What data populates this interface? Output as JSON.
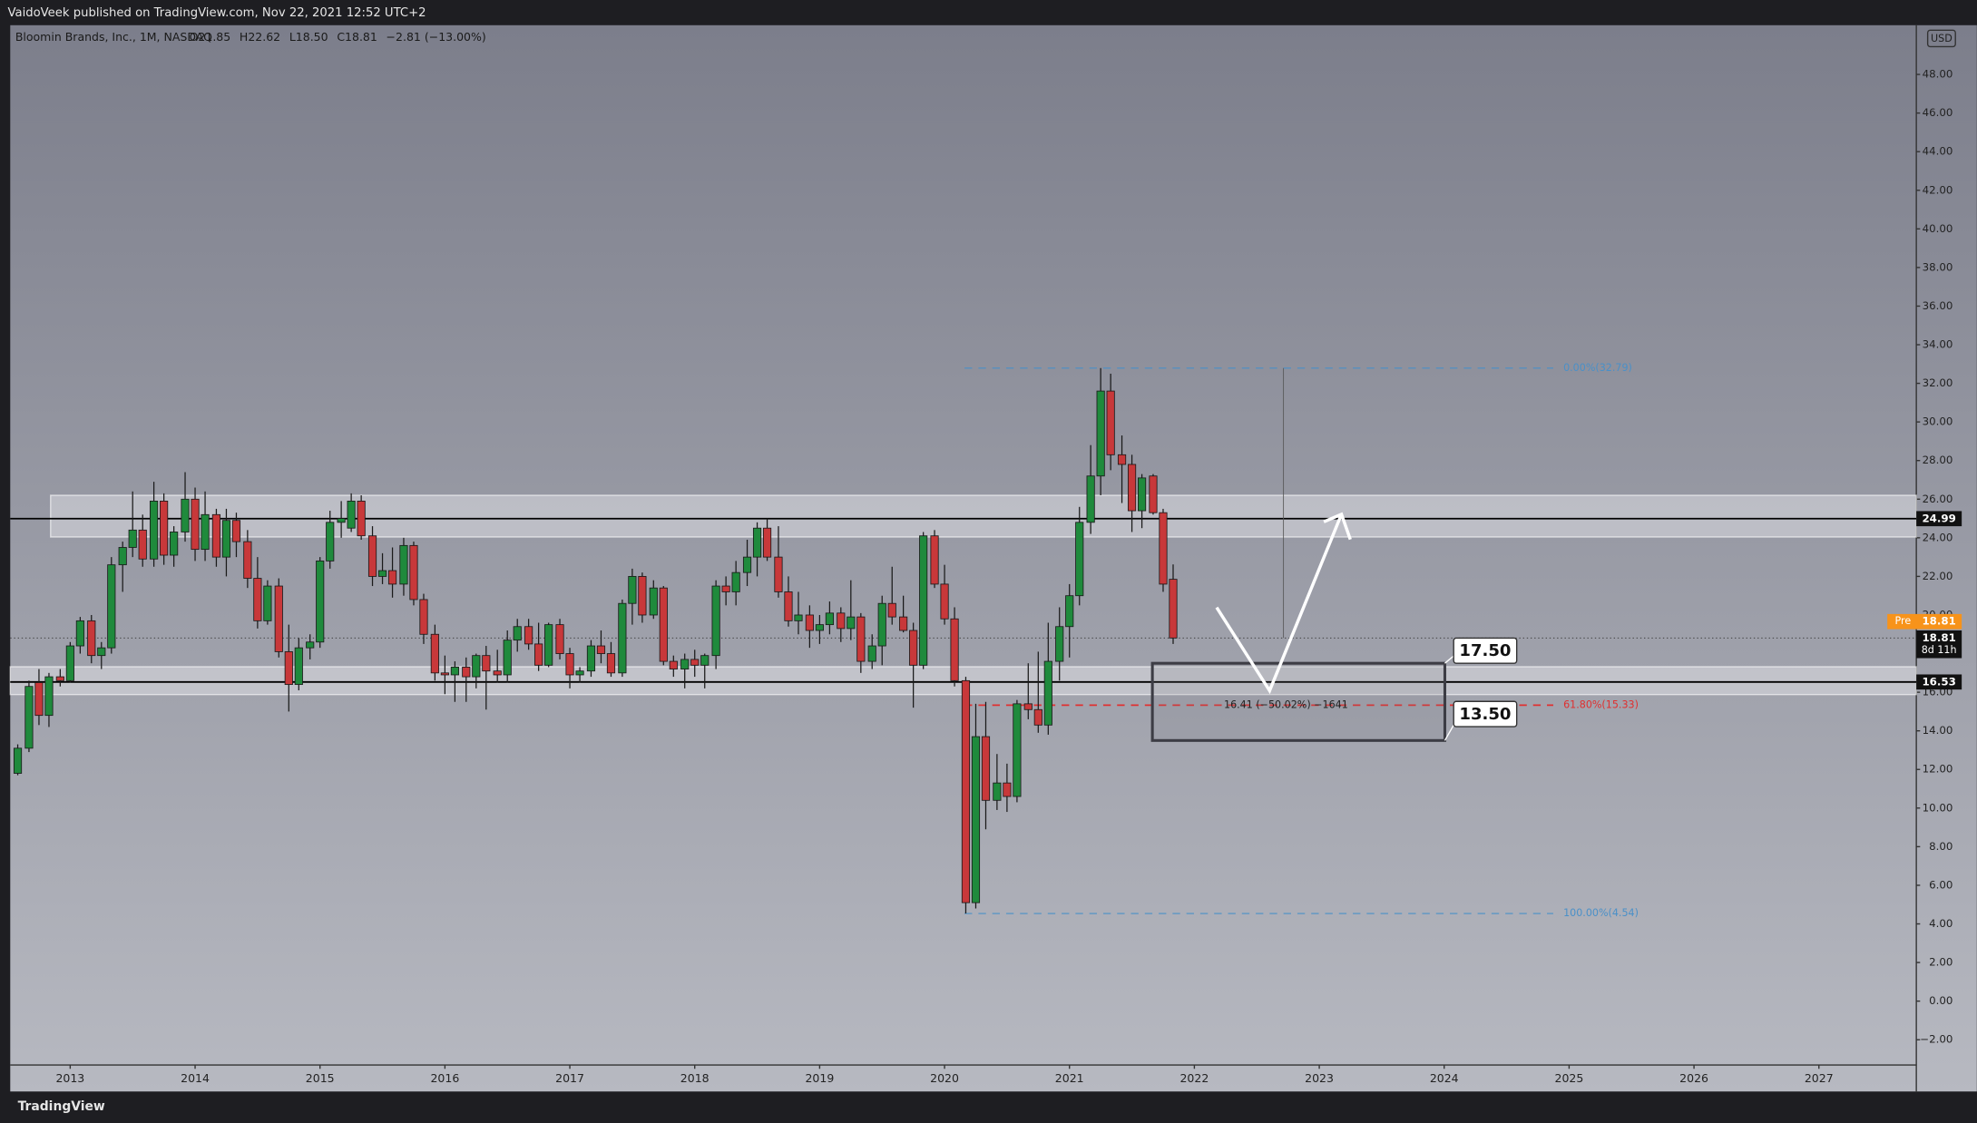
{
  "header": {
    "publisher": "VaidoVeek published on TradingView.com, Nov 22, 2021 12:52 UTC+2",
    "brand": "TradingView"
  },
  "chart_data": {
    "type": "candlestick",
    "title": "Bloomin Brands, Inc., 1M, NASDAQ",
    "ohlc_text": [
      "O21.85",
      "H22.62",
      "L18.50",
      "C18.81",
      "−2.81 (−13.00%)"
    ],
    "currency": "USD",
    "x": [
      2012.58,
      2012.67,
      2012.75,
      2012.83,
      2012.92,
      2013,
      2013.08,
      2013.17,
      2013.25,
      2013.33,
      2013.42,
      2013.5,
      2013.58,
      2013.67,
      2013.75,
      2013.83,
      2013.92,
      2014,
      2014.08,
      2014.17,
      2014.25,
      2014.33,
      2014.42,
      2014.5,
      2014.58,
      2014.67,
      2014.75,
      2014.83,
      2014.92,
      2015,
      2015.08,
      2015.17,
      2015.25,
      2015.33,
      2015.42,
      2015.5,
      2015.58,
      2015.67,
      2015.75,
      2015.83,
      2015.92,
      2016,
      2016.08,
      2016.17,
      2016.25,
      2016.33,
      2016.42,
      2016.5,
      2016.58,
      2016.67,
      2016.75,
      2016.83,
      2016.92,
      2017,
      2017.08,
      2017.17,
      2017.25,
      2017.33,
      2017.42,
      2017.5,
      2017.58,
      2017.67,
      2017.75,
      2017.83,
      2017.92,
      2018,
      2018.08,
      2018.17,
      2018.25,
      2018.33,
      2018.42,
      2018.5,
      2018.58,
      2018.67,
      2018.75,
      2018.83,
      2018.92,
      2019,
      2019.08,
      2019.17,
      2019.25,
      2019.33,
      2019.42,
      2019.5,
      2019.58,
      2019.67,
      2019.75,
      2019.83,
      2019.92,
      2020,
      2020.08,
      2020.17,
      2020.25,
      2020.33,
      2020.42,
      2020.5,
      2020.58,
      2020.67,
      2020.75,
      2020.83,
      2020.92,
      2021,
      2021.08,
      2021.17,
      2021.25,
      2021.33,
      2021.42,
      2021.5,
      2021.58,
      2021.67,
      2021.75,
      2021.83
    ],
    "open": [
      11.8,
      13.1,
      16.5,
      14.8,
      16.8,
      16.6,
      18.4,
      19.7,
      17.9,
      18.3,
      22.6,
      23.5,
      24.4,
      22.9,
      25.9,
      23.1,
      24.3,
      26.0,
      23.4,
      25.2,
      23.0,
      24.9,
      23.8,
      21.9,
      19.7,
      21.5,
      18.1,
      16.4,
      18.3,
      18.6,
      22.8,
      24.8,
      24.5,
      25.9,
      24.1,
      22.0,
      22.3,
      21.6,
      23.6,
      20.8,
      19.0,
      17.0,
      16.9,
      17.3,
      16.8,
      17.9,
      17.1,
      16.9,
      18.7,
      19.4,
      18.5,
      17.4,
      19.5,
      18.0,
      16.9,
      17.1,
      18.4,
      18.0,
      17.0,
      20.6,
      22.0,
      20.0,
      21.4,
      17.6,
      17.2,
      17.7,
      17.4,
      17.9,
      21.5,
      21.2,
      22.2,
      23.0,
      24.5,
      23.0,
      21.2,
      19.7,
      20.0,
      19.2,
      19.5,
      20.1,
      19.3,
      19.9,
      17.6,
      18.4,
      20.6,
      19.9,
      19.2,
      17.4,
      24.1,
      21.6,
      19.8,
      16.6,
      5.1,
      13.7,
      10.4,
      11.3,
      10.6,
      15.4,
      15.1,
      14.3,
      17.6,
      19.4,
      21.0,
      24.8,
      27.2,
      31.6,
      28.3,
      27.8,
      25.4,
      27.2,
      25.3,
      21.85
    ],
    "high": [
      13.3,
      16.6,
      17.2,
      17.0,
      17.2,
      18.6,
      19.9,
      20.0,
      18.6,
      23.0,
      23.8,
      26.4,
      25.2,
      26.9,
      26.3,
      24.6,
      27.4,
      26.6,
      26.4,
      25.5,
      25.5,
      25.3,
      24.4,
      23.0,
      21.8,
      21.9,
      19.5,
      18.8,
      19.0,
      23.0,
      25.4,
      25.9,
      26.3,
      26.2,
      24.6,
      23.2,
      23.5,
      24.0,
      23.8,
      21.1,
      19.5,
      17.9,
      17.6,
      17.8,
      18.0,
      18.4,
      18.2,
      19.2,
      19.8,
      19.8,
      19.6,
      19.6,
      19.8,
      18.3,
      17.3,
      18.7,
      19.2,
      18.6,
      20.8,
      22.4,
      22.2,
      21.8,
      21.5,
      17.9,
      18.0,
      18.2,
      18.0,
      21.8,
      22.0,
      22.8,
      23.9,
      24.8,
      25.0,
      24.6,
      22.0,
      21.2,
      20.5,
      20.0,
      20.7,
      20.4,
      21.8,
      20.1,
      19.0,
      21.0,
      22.5,
      21.0,
      19.6,
      24.3,
      24.4,
      22.6,
      20.4,
      16.8,
      15.4,
      15.5,
      12.8,
      12.3,
      15.6,
      17.5,
      18.1,
      19.6,
      20.4,
      21.6,
      25.6,
      28.8,
      32.79,
      32.5,
      29.3,
      28.3,
      27.3,
      27.3,
      25.5,
      22.62
    ],
    "low": [
      11.7,
      12.9,
      14.3,
      14.2,
      16.3,
      16.5,
      18.0,
      17.5,
      17.2,
      18.0,
      21.2,
      23.0,
      22.5,
      22.5,
      22.6,
      22.5,
      23.8,
      22.8,
      22.8,
      22.5,
      22.0,
      23.0,
      21.4,
      19.3,
      19.5,
      17.8,
      15.0,
      16.1,
      17.7,
      18.3,
      22.4,
      24.0,
      24.3,
      23.9,
      21.5,
      21.6,
      20.9,
      21.0,
      20.5,
      18.5,
      16.6,
      15.9,
      15.5,
      15.5,
      16.2,
      15.1,
      16.5,
      16.5,
      18.1,
      18.2,
      17.1,
      17.3,
      17.7,
      16.2,
      16.5,
      16.8,
      17.5,
      16.8,
      16.8,
      19.5,
      19.6,
      19.8,
      17.4,
      16.8,
      16.2,
      16.8,
      16.2,
      17.2,
      20.5,
      20.5,
      21.5,
      22.0,
      22.8,
      20.9,
      19.4,
      19.0,
      18.3,
      18.5,
      19.0,
      18.6,
      18.7,
      17.0,
      17.2,
      17.4,
      19.5,
      19.1,
      15.2,
      17.2,
      21.4,
      19.5,
      16.3,
      4.54,
      4.8,
      8.9,
      9.9,
      9.8,
      10.3,
      14.6,
      13.9,
      13.8,
      16.6,
      17.8,
      20.5,
      24.2,
      26.2,
      27.5,
      25.8,
      24.3,
      24.5,
      25.2,
      21.2,
      18.5
    ],
    "close": [
      13.1,
      16.3,
      14.8,
      16.8,
      16.6,
      18.4,
      19.7,
      17.9,
      18.3,
      22.6,
      23.5,
      24.4,
      22.9,
      25.9,
      23.1,
      24.3,
      26.0,
      23.4,
      25.2,
      23.0,
      24.9,
      23.8,
      21.9,
      19.7,
      21.5,
      18.1,
      16.4,
      18.3,
      18.6,
      22.8,
      24.8,
      25.0,
      25.9,
      24.1,
      22.0,
      22.3,
      21.6,
      23.6,
      20.8,
      19.0,
      17.0,
      16.9,
      17.3,
      16.8,
      17.9,
      17.1,
      16.9,
      18.7,
      19.4,
      18.5,
      17.4,
      19.5,
      18.0,
      16.9,
      17.1,
      18.4,
      18.0,
      17.0,
      20.6,
      22.0,
      20.0,
      21.4,
      17.6,
      17.2,
      17.7,
      17.4,
      17.9,
      21.5,
      21.2,
      22.2,
      23.0,
      24.5,
      23.0,
      21.2,
      19.7,
      20.0,
      19.2,
      19.5,
      20.1,
      19.3,
      19.9,
      17.6,
      18.4,
      20.6,
      19.9,
      19.2,
      17.4,
      24.1,
      21.6,
      19.8,
      16.6,
      5.1,
      13.7,
      10.4,
      11.3,
      10.6,
      15.4,
      15.1,
      14.3,
      17.6,
      19.4,
      21.0,
      24.8,
      27.2,
      31.6,
      28.3,
      27.8,
      25.4,
      27.1,
      25.3,
      21.6,
      18.81
    ],
    "up_color": "#1f8a3c",
    "down_color": "#c8383a",
    "xlim": [
      2012.52,
      2027.78
    ],
    "xticks": [
      2013,
      2014,
      2015,
      2016,
      2017,
      2018,
      2019,
      2020,
      2021,
      2022,
      2023,
      2024,
      2025,
      2026,
      2027
    ],
    "ylim": [
      -3.31,
      50.55
    ],
    "yticks": [
      {
        "value": -2,
        "label": "−2.00"
      },
      {
        "value": 0,
        "label": "0.00"
      },
      {
        "value": 2,
        "label": "2.00"
      },
      {
        "value": 4,
        "label": "4.00"
      },
      {
        "value": 6,
        "label": "6.00"
      },
      {
        "value": 8,
        "label": "8.00"
      },
      {
        "value": 10,
        "label": "10.00"
      },
      {
        "value": 12,
        "label": "12.00"
      },
      {
        "value": 14,
        "label": "14.00"
      },
      {
        "value": 16,
        "label": "16.00"
      },
      {
        "value": 18,
        "label": "18.00"
      },
      {
        "value": 20,
        "label": "20.00"
      },
      {
        "value": 22,
        "label": "22.00"
      },
      {
        "value": 24,
        "label": "24.00"
      },
      {
        "value": 26,
        "label": "26.00"
      },
      {
        "value": 28,
        "label": "28.00"
      },
      {
        "value": 30,
        "label": "30.00"
      },
      {
        "value": 32,
        "label": "32.00"
      },
      {
        "value": 34,
        "label": "34.00"
      },
      {
        "value": 36,
        "label": "36.00"
      },
      {
        "value": 38,
        "label": "38.00"
      },
      {
        "value": 40,
        "label": "40.00"
      },
      {
        "value": 42,
        "label": "42.00"
      },
      {
        "value": 44,
        "label": "44.00"
      },
      {
        "value": 46,
        "label": "46.00"
      },
      {
        "value": 48,
        "label": "48.00"
      }
    ],
    "zones": [
      [
        24.04,
        26.2
      ],
      [
        15.88,
        17.32
      ]
    ],
    "levels": [
      24.99,
      16.53
    ],
    "last_price": {
      "value": 18.81,
      "countdown": "8d 11h"
    },
    "premarket": {
      "label": "Pre",
      "value": 18.81,
      "color": "#f7931a"
    },
    "fib": [
      {
        "value": 32.79,
        "label": "0.00%(32.79)",
        "color": "#4a90c8"
      },
      {
        "value": 15.33,
        "label": "61.80%(15.33)",
        "color": "#e03030"
      },
      {
        "value": 4.54,
        "label": "100.00%(4.54)",
        "color": "#4a90c8"
      }
    ],
    "measure": "16.41 (−50.02%) −1641",
    "box": {
      "top": {
        "value": 17.5,
        "label": "17.50"
      },
      "bottom": {
        "value": 13.5,
        "label": "13.50"
      }
    }
  }
}
